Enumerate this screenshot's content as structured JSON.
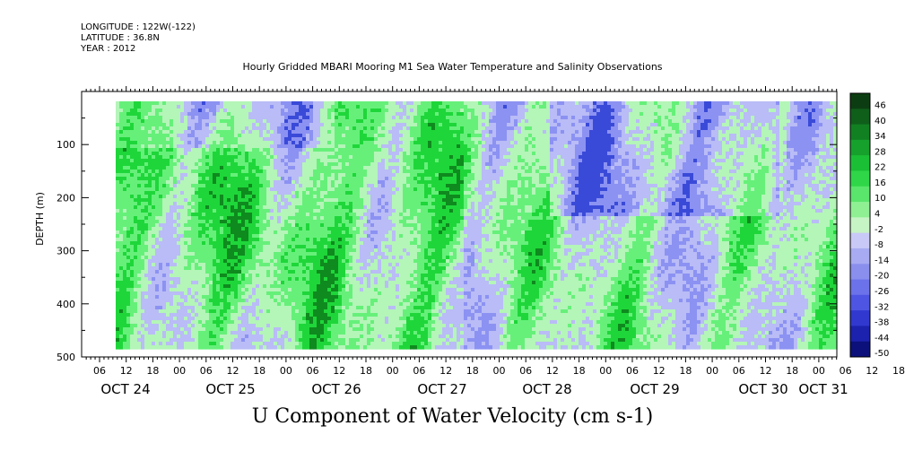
{
  "header": {
    "longitude": "LONGITUDE : 122W(-122)",
    "latitude": "LATITUDE : 36.8N",
    "year": "YEAR : 2012"
  },
  "chart_data": {
    "type": "heatmap",
    "title": "Hourly Gridded MBARI Mooring M1 Sea Water Temperature and Salinity Observations",
    "xlabel": "U Component of Water Velocity (cm s-1)",
    "ylabel": "DEPTH (m)",
    "x_hour_ticks": [
      "06",
      "12",
      "18",
      "00",
      "06",
      "12",
      "18",
      "00",
      "06",
      "12",
      "18",
      "00",
      "06",
      "12",
      "18",
      "00",
      "06",
      "12",
      "18",
      "00",
      "06",
      "12",
      "18",
      "00",
      "06",
      "12",
      "18",
      "00",
      "06",
      "12",
      "18",
      "00"
    ],
    "x_day_labels": [
      "OCT 24",
      "OCT 25",
      "OCT 26",
      "OCT 27",
      "OCT 28",
      "OCT 29",
      "OCT 30",
      "OCT 31"
    ],
    "y_ticks": [
      "100",
      "200",
      "300",
      "400",
      "500"
    ],
    "y_range": [
      0,
      500
    ],
    "colorbar_labels": [
      "46",
      "40",
      "34",
      "28",
      "22",
      "16",
      "10",
      "4",
      "-2",
      "-8",
      "-14",
      "-20",
      "-26",
      "-32",
      "-38",
      "-44",
      "-50"
    ],
    "colorbar_range": [
      -50,
      50
    ],
    "colors": {
      "green_dark": "#0f8a1e",
      "green": "#1fd63a",
      "green_light": "#66f07a",
      "pale_green": "#b4f5b8",
      "pale_blue": "#b9bcf6",
      "blue": "#8c92f2",
      "blue_dark": "#3a4ad8"
    }
  }
}
